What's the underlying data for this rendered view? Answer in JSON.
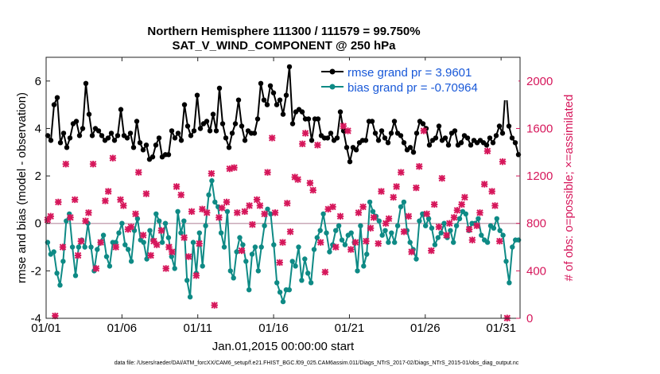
{
  "chart_data": {
    "type": "line",
    "title_line1": "Northern Hemisphere 111300 / 111579 = 99.750%",
    "title_line2": "SAT_V_WIND_COMPONENT @ 250 hPa",
    "xlabel": "Jan.01,2015 00:00:00 start",
    "ylabel_left": "rmse and bias (model - observation)",
    "ylabel_right": "# of obs: o=possible; ×=assimilated",
    "footer": "data file: /Users/raeder/DAI/ATM_forcXX/CAM6_setup/f.e21.FHIST_BGC.f09_025.CAM6assim.011/Diags_NTrS_2017-02/Diags_NTrS_2015-01/obs_diag_output.nc",
    "x_ticks": [
      "01/01",
      "01/06",
      "01/11",
      "01/16",
      "01/21",
      "01/26",
      "01/31"
    ],
    "x_tick_days": [
      1,
      6,
      11,
      16,
      21,
      26,
      31
    ],
    "xlim_days": [
      1,
      32.25
    ],
    "ylim_left": [
      -4,
      7
    ],
    "y_ticks_left": [
      "-4",
      "-2",
      "0",
      "2",
      "4",
      "6"
    ],
    "y_tick_left_values": [
      -4,
      -2,
      0,
      2,
      4,
      6
    ],
    "ylim_right": [
      0,
      2200
    ],
    "y_ticks_right": [
      "0",
      "400",
      "800",
      "1200",
      "1600",
      "2000"
    ],
    "y_tick_right_values": [
      0,
      400,
      800,
      1200,
      1600,
      2000
    ],
    "colors": {
      "rmse": "#000000",
      "bias": "#0e8a85",
      "obs": "#d6175b",
      "legend_text": "#1858d8",
      "zero_line": "#c9a9b8"
    },
    "series": [
      {
        "name": "rmse grand pr = 3.9601",
        "role": "rmse",
        "values": [
          3.7,
          3.5,
          5.0,
          5.3,
          3.4,
          3.8,
          3.2,
          3.6,
          4.2,
          4.3,
          3.7,
          4.0,
          5.9,
          4.6,
          3.7,
          4.0,
          3.9,
          3.7,
          3.5,
          3.6,
          3.8,
          3.5,
          3.7,
          4.8,
          3.7,
          3.6,
          3.8,
          3.2,
          4.3,
          3.4,
          3.1,
          3.3,
          2.7,
          2.8,
          3.3,
          3.6,
          2.8,
          2.9,
          2.9,
          3.9,
          3.6,
          3.8,
          3.5,
          5.0,
          4.1,
          3.7,
          3.9,
          5.4,
          4.0,
          4.2,
          4.3,
          3.9,
          4.6,
          3.9,
          5.7,
          4.2,
          3.6,
          3.2,
          3.8,
          4.2,
          5.2,
          4.1,
          3.5,
          3.9,
          3.8,
          3.8,
          4.4,
          5.9,
          5.2,
          5.0,
          5.8,
          5.5,
          5.0,
          5.2,
          4.6,
          5.4,
          6.6,
          4.2,
          4.7,
          4.8,
          4.7,
          4.4,
          4.4,
          3.5,
          4.4,
          4.4,
          3.7,
          3.6,
          3.6,
          3.8,
          3.5,
          3.6,
          4.7,
          3.9,
          3.2,
          2.6,
          3.2,
          3.1,
          3.4,
          3.5,
          3.5,
          4.3,
          4.3,
          3.8,
          3.5,
          3.9,
          3.6,
          3.4,
          3.8,
          4.3,
          3.8,
          3.7,
          3.4,
          3.1,
          3.2,
          3.0,
          3.8,
          4.3,
          4.2,
          4.0,
          3.3,
          3.5,
          3.6,
          4.1,
          3.5,
          3.6,
          3.3,
          3.8,
          3.9,
          3.3,
          3.4,
          3.7,
          3.6,
          3.3,
          3.5,
          3.4,
          3.5,
          3.4,
          3.3,
          3.6,
          3.4,
          3.7,
          4.1,
          3.8,
          5.8,
          4.1,
          3.6,
          3.4,
          2.9
        ]
      },
      {
        "name": "bias grand pr = -0.70964",
        "role": "bias",
        "values": [
          -0.8,
          -1.3,
          -1.2,
          -2.1,
          -2.6,
          -1.6,
          0.1,
          0.4,
          -1.0,
          -2.2,
          -1.0,
          -0.7,
          -1.0,
          0.0,
          -1.0,
          -2.0,
          -1.1,
          -0.8,
          -0.5,
          -1.4,
          -1.8,
          -0.8,
          -0.8,
          -0.4,
          0.0,
          -0.9,
          -1.1,
          -1.6,
          -0.3,
          0.2,
          -0.7,
          -0.8,
          -1.5,
          -0.3,
          -0.7,
          0.4,
          0.1,
          -0.8,
          0.0,
          -0.6,
          -1.4,
          -1.9,
          0.5,
          -0.4,
          0.1,
          -2.4,
          -3.1,
          -0.8,
          -2.1,
          -0.4,
          -1.8,
          -0.1,
          1.2,
          1.8,
          0.9,
          0.7,
          -0.4,
          -1.0,
          0.5,
          -2.0,
          -2.3,
          -1.2,
          -0.6,
          -0.9,
          -1.6,
          -2.8,
          -1.3,
          -1.0,
          -2.0,
          -1.0,
          -0.1,
          0.6,
          0.4,
          -0.9,
          -2.5,
          -2.9,
          -3.3,
          -2.8,
          -2.8,
          -1.6,
          -1.8,
          -1.0,
          -2.4,
          -1.5,
          -2.1,
          -2.5,
          -1.1,
          -0.6,
          -0.3,
          0.4,
          -0.4,
          -1.2,
          -0.9,
          -0.3,
          -0.1,
          -0.7,
          -0.9,
          -0.5,
          -0.4,
          -0.8,
          -2.0,
          -0.1,
          -1.8,
          -1.3,
          0.9,
          0.5,
          0.3,
          0.1,
          -0.5,
          -0.3,
          -0.8,
          -0.4,
          -0.8,
          -0.1,
          0.7,
          0.9,
          -0.3,
          -0.8,
          -1.1,
          -1.5,
          0.1,
          0.4,
          -0.1,
          0.2,
          -0.2,
          -0.9,
          -0.6,
          -0.4,
          0.0,
          -0.6,
          -0.3,
          -0.8,
          -0.1,
          0.2,
          0.5,
          0.4,
          -0.3,
          0.0,
          0.0,
          0.2,
          -0.5,
          -0.7,
          -0.8,
          -0.1,
          -0.2,
          0.2,
          -0.3,
          -0.5,
          -1.6,
          -2.5,
          -1.0,
          -0.7,
          -0.7
        ]
      },
      {
        "name": "obs assimilated",
        "role": "obs",
        "day": [
          1.1,
          1.3,
          1.6,
          1.8,
          2.1,
          2.3,
          2.6,
          2.9,
          3.1,
          3.3,
          3.6,
          3.8,
          4.1,
          4.3,
          4.6,
          4.9,
          5.1,
          5.4,
          5.6,
          5.9,
          6.1,
          6.4,
          6.6,
          6.9,
          7.1,
          7.4,
          7.6,
          7.9,
          8.1,
          8.3,
          8.6,
          8.9,
          9.1,
          9.3,
          9.6,
          9.9,
          10.1,
          10.4,
          10.6,
          10.9,
          11.1,
          11.3,
          11.6,
          11.9,
          12.1,
          12.4,
          12.6,
          12.9,
          13.1,
          13.4,
          13.6,
          13.9,
          14.1,
          14.4,
          14.6,
          14.9,
          15.1,
          15.4,
          15.6,
          15.9,
          16.1,
          16.4,
          16.6,
          16.9,
          17.1,
          17.4,
          17.6,
          17.9,
          18.1,
          18.4,
          18.6,
          18.9,
          19.1,
          19.4,
          19.6,
          19.9,
          20.1,
          20.4,
          20.6,
          20.9,
          21.1,
          21.4,
          21.6,
          21.9,
          22.1,
          22.4,
          22.6,
          22.9,
          23.1,
          23.4,
          23.6,
          23.9,
          24.1,
          24.4,
          24.6,
          24.9,
          25.1,
          25.4,
          25.6,
          25.9,
          26.1,
          26.4,
          26.6,
          26.9,
          27.1,
          27.4,
          27.6,
          27.9,
          28.1,
          28.4,
          28.6,
          28.9,
          29.1,
          29.4,
          29.6,
          29.9,
          30.1,
          30.4,
          30.6,
          30.9,
          31.1,
          31.4
        ],
        "values": [
          830,
          860,
          20,
          980,
          600,
          1300,
          850,
          1000,
          530,
          650,
          820,
          890,
          1300,
          420,
          640,
          990,
          1070,
          1350,
          600,
          1000,
          950,
          750,
          770,
          880,
          1230,
          700,
          1050,
          530,
          650,
          620,
          740,
          420,
          600,
          560,
          1110,
          1040,
          680,
          520,
          900,
          360,
          630,
          920,
          890,
          1220,
          110,
          850,
          930,
          980,
          1260,
          1270,
          890,
          570,
          900,
          950,
          790,
          1000,
          950,
          880,
          1230,
          1520,
          890,
          470,
          640,
          970,
          730,
          1190,
          1170,
          1470,
          1560,
          1140,
          1080,
          1460,
          640,
          390,
          920,
          940,
          600,
          860,
          1620,
          1580,
          580,
          640,
          890,
          940,
          650,
          760,
          850,
          630,
          1070,
          800,
          840,
          1020,
          1110,
          1230,
          730,
          860,
          560,
          1100,
          1280,
          1580,
          880,
          570,
          960,
          770,
          1180,
          700,
          800,
          850,
          910,
          960,
          1020,
          750,
          660,
          780,
          890,
          1130,
          1410,
          1070,
          950,
          650,
          1320,
          2
        ]
      }
    ],
    "legend": [
      "rmse grand pr = 3.9601",
      "bias grand pr = -0.70964"
    ]
  }
}
